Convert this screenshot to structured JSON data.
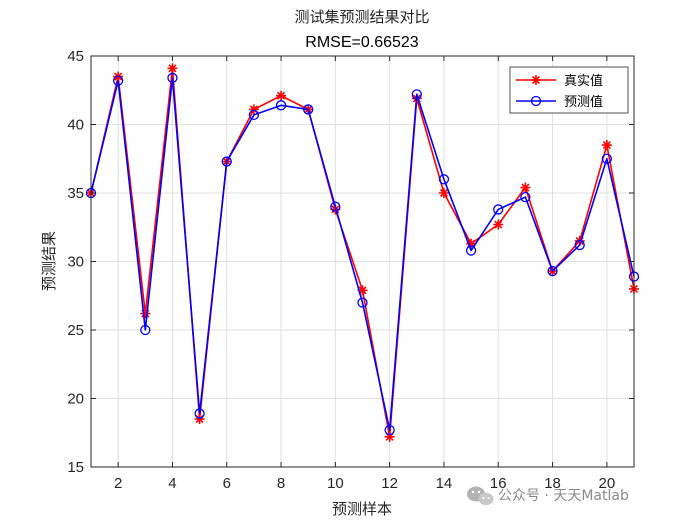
{
  "chart_data": {
    "type": "line",
    "title": "测试集预测结果对比",
    "subtitle": "RMSE=0.66523",
    "xlabel": "预测样本",
    "ylabel": "预测结果",
    "xlim": [
      1,
      21
    ],
    "ylim": [
      15,
      45
    ],
    "xticks": [
      2,
      4,
      6,
      8,
      10,
      12,
      14,
      16,
      18,
      20
    ],
    "yticks": [
      15,
      20,
      25,
      30,
      35,
      40,
      45
    ],
    "grid": true,
    "legend_position": "top-right",
    "x": [
      1,
      2,
      3,
      4,
      5,
      6,
      7,
      8,
      9,
      10,
      11,
      12,
      13,
      14,
      15,
      16,
      17,
      18,
      19,
      20,
      21
    ],
    "series": [
      {
        "name": "真实值",
        "color": "#ff0000",
        "marker": "asterisk",
        "values": [
          35.0,
          43.5,
          26.2,
          44.1,
          18.5,
          37.3,
          41.1,
          42.1,
          41.1,
          33.8,
          27.9,
          17.2,
          41.9,
          35.0,
          31.3,
          32.7,
          35.4,
          29.3,
          31.5,
          38.5,
          28.0
        ]
      },
      {
        "name": "预测值",
        "color": "#0000ff",
        "marker": "circle",
        "values": [
          35.0,
          43.2,
          25.0,
          43.4,
          18.9,
          37.3,
          40.7,
          41.4,
          41.1,
          34.0,
          27.0,
          17.7,
          42.2,
          36.0,
          30.8,
          33.8,
          34.7,
          29.3,
          31.2,
          37.5,
          28.9
        ]
      }
    ]
  },
  "watermark": {
    "text": "公众号 · 天天Matlab",
    "icon": "wechat-icon"
  }
}
